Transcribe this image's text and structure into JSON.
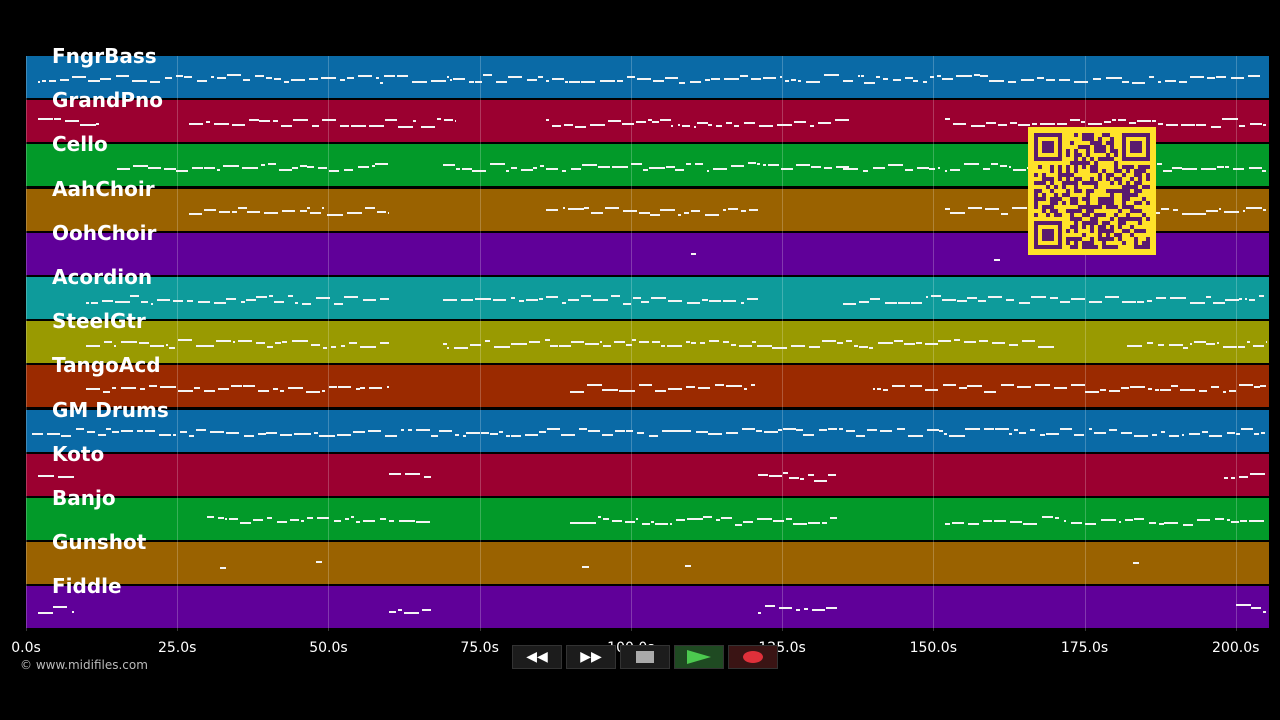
{
  "tracks": [
    {
      "name": "FngrBass",
      "color": "#0a6aa6"
    },
    {
      "name": "GrandPno",
      "color": "#9b0030"
    },
    {
      "name": "Cello",
      "color": "#029a29"
    },
    {
      "name": "AahChoir",
      "color": "#9a6200"
    },
    {
      "name": "OohChoir",
      "color": "#600099"
    },
    {
      "name": "Acordion",
      "color": "#0e9b9b"
    },
    {
      "name": "SteelGtr",
      "color": "#999a01"
    },
    {
      "name": "TangoAcd",
      "color": "#9b2a00"
    },
    {
      "name": "GM Drums",
      "color": "#0a6aa6"
    },
    {
      "name": "Koto",
      "color": "#9b0030"
    },
    {
      "name": "Banjo",
      "color": "#029a29"
    },
    {
      "name": "Gunshot",
      "color": "#9a6200"
    },
    {
      "name": "Fiddle",
      "color": "#600099"
    }
  ],
  "timeline": {
    "max_seconds": 205.5,
    "ticks": [
      "0.0s",
      "25.0s",
      "50.0s",
      "75.0s",
      "100.0s",
      "125.0s",
      "150.0s",
      "175.0s",
      "200.0s"
    ],
    "tick_seconds": [
      0,
      25,
      50,
      75,
      100,
      125,
      150,
      175,
      200
    ]
  },
  "copyright": "© www.midifiles.com",
  "transport": {
    "rewind_icon": "rewind-icon",
    "fast_forward_icon": "fast-forward-icon",
    "stop_icon": "stop-icon",
    "play_icon": "play-icon",
    "record_icon": "record-icon"
  },
  "qr_code": {
    "color": "#ffe229",
    "module_color": "#5a1b6e"
  }
}
